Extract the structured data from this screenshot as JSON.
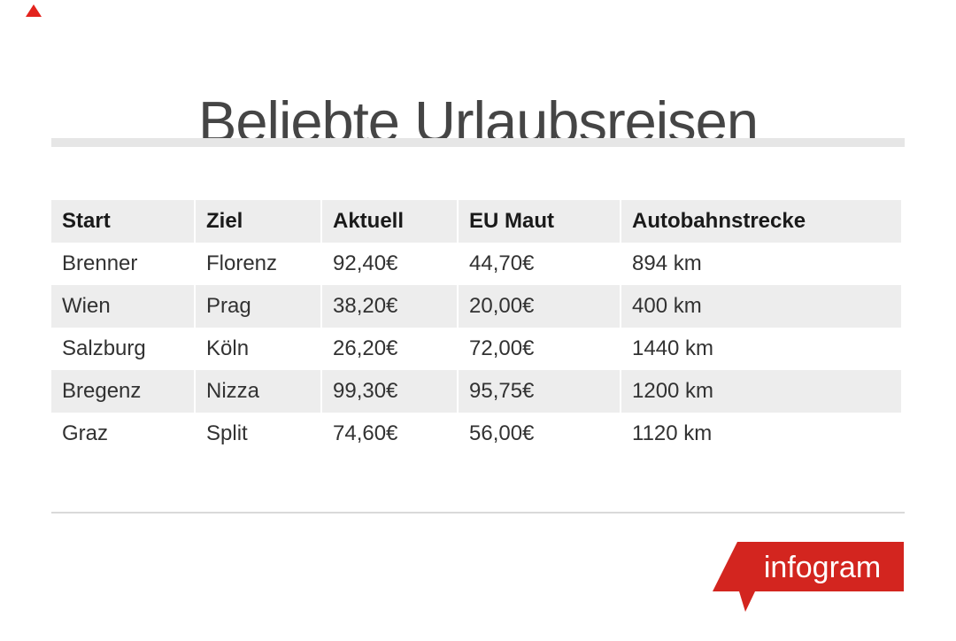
{
  "title": "Beliebte Urlaubsreisen",
  "corner_marker": {
    "icon": "red-triangle",
    "color": "#e3231d"
  },
  "chart_data": {
    "type": "table",
    "title": "Beliebte Urlaubsreisen",
    "columns": [
      "Start",
      "Ziel",
      "Aktuell",
      "EU Maut",
      "Autobahnstrecke"
    ],
    "rows": [
      [
        "Brenner",
        "Florenz",
        "92,40€",
        "44,70€",
        "894 km"
      ],
      [
        "Wien",
        "Prag",
        "38,20€",
        "20,00€",
        "400 km"
      ],
      [
        "Salzburg",
        "Köln",
        "26,20€",
        "72,00€",
        "1440 km"
      ],
      [
        "Bregenz",
        "Nizza",
        "99,30€",
        "95,75€",
        "1200 km"
      ],
      [
        "Graz",
        "Split",
        "74,60€",
        "56,00€",
        "1120 km"
      ]
    ],
    "layout": {
      "header_background": "#ededed",
      "alt_row_background": "#ededed",
      "row_background": "#ffffff",
      "zebra_striping": true
    }
  },
  "logo": {
    "text": "infogram",
    "color": "#d3251f",
    "text_color": "#ffffff"
  },
  "colors": {
    "title_text": "#454545",
    "divider": "#e6e6e6",
    "bottom_rule": "#d9d9d9",
    "header_text": "#1a1a1a",
    "body_text": "#323232",
    "accent_red": "#d3251f"
  }
}
